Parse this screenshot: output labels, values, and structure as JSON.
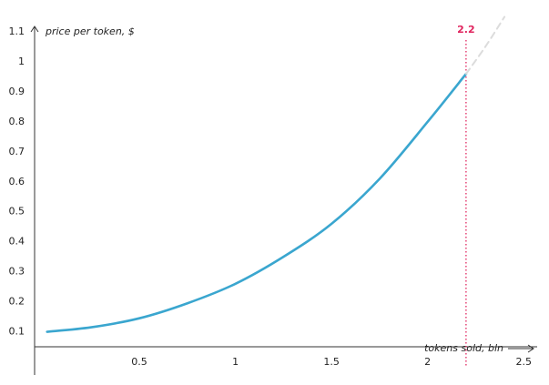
{
  "chart_data": {
    "type": "line",
    "y_label": "price per token, $",
    "x_label": "tokens sold, bln",
    "series": [
      {
        "color": "#3aa6cf",
        "x": [
          0.02,
          0.25,
          0.5,
          0.75,
          1,
          1.25,
          1.5,
          1.75,
          2,
          2.2
        ],
        "values": [
          0.1,
          0.115,
          0.145,
          0.195,
          0.26,
          0.35,
          0.46,
          0.61,
          0.8,
          0.96
        ]
      },
      {
        "color": "#dcdcdc",
        "dashed": true,
        "x": [
          2.2,
          2.3,
          2.4
        ],
        "values": [
          0.96,
          1.05,
          1.15
        ]
      }
    ],
    "vline": 2.2,
    "vline_color": "#e0245e",
    "xlim": [
      -0.045,
      2.57
    ],
    "ylim": [
      0.05,
      1.12
    ],
    "xticks": [
      0.5,
      1,
      1.5,
      2,
      2.5
    ],
    "yticks": [
      0.1,
      0.2,
      0.3,
      0.4,
      0.5,
      0.6,
      0.7,
      0.8,
      0.9,
      1,
      1.1
    ],
    "grid": false
  }
}
